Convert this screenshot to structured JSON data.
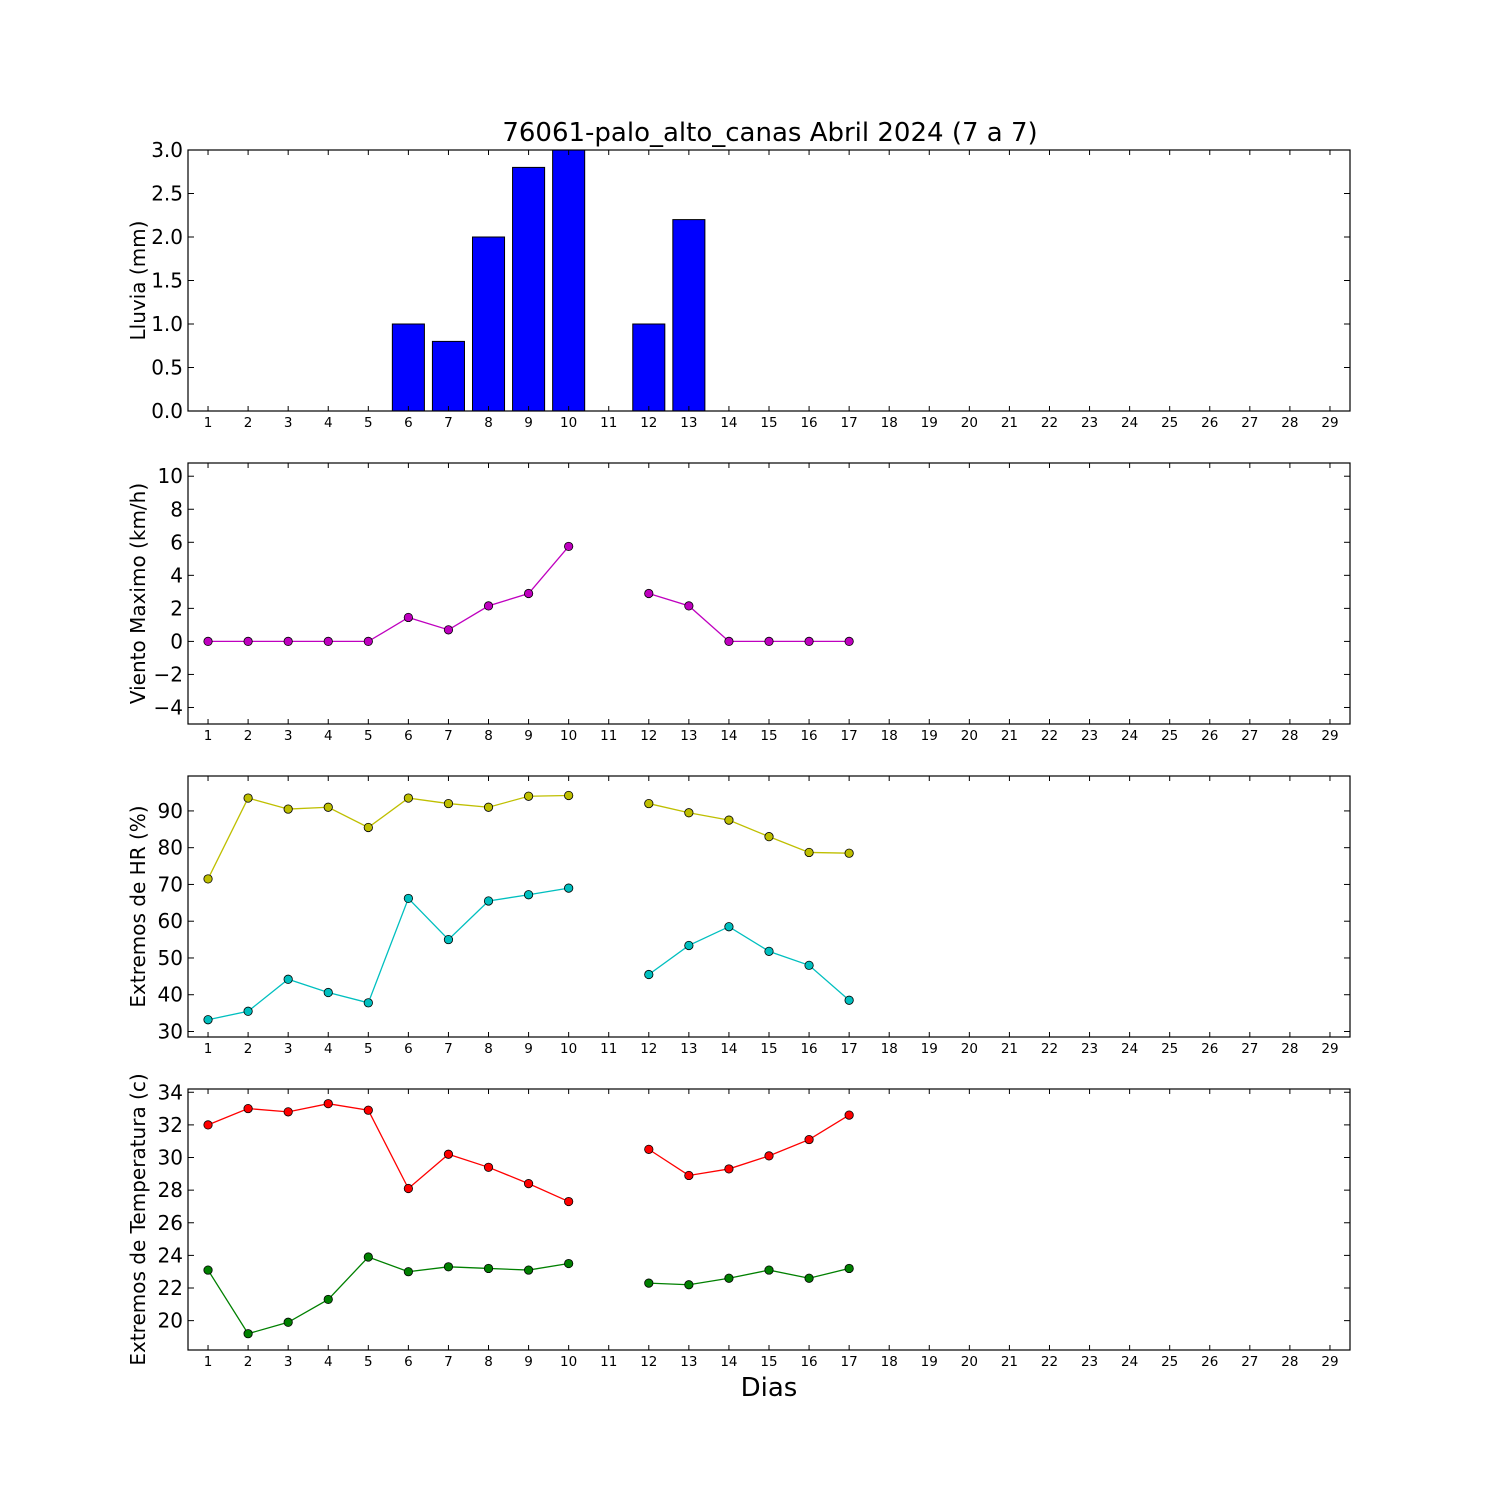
{
  "chart_data": [
    {
      "type": "bar",
      "title": "76061-palo_alto_canas Abril 2024  (7 a 7)",
      "ylabel": "Lluvia (mm)",
      "xlim": [
        0.5,
        29.5
      ],
      "ylim": [
        0,
        3.0
      ],
      "yticks": [
        "0.0",
        "0.5",
        "1.0",
        "1.5",
        "2.0",
        "2.5",
        "3.0"
      ],
      "x": [
        1,
        2,
        3,
        4,
        5,
        6,
        7,
        8,
        9,
        10,
        11,
        12,
        13,
        14,
        15,
        16,
        17,
        18,
        19,
        20,
        21,
        22,
        23,
        24,
        25,
        26,
        27,
        28,
        29
      ],
      "series": [
        {
          "color": "#0000ff",
          "values": [
            0,
            0,
            0,
            0,
            0,
            1.0,
            0.8,
            2.0,
            2.8,
            3.0,
            null,
            1.0,
            2.2,
            0,
            0,
            0,
            0,
            null,
            null,
            null,
            null,
            null,
            null,
            null,
            null,
            null,
            null,
            null,
            null
          ]
        }
      ],
      "grid": false
    },
    {
      "type": "line",
      "ylabel": "Viento Maximo (km/h)",
      "xlim": [
        0.5,
        29.5
      ],
      "ylim": [
        -5,
        10.8
      ],
      "yticks": [
        "−4",
        "−2",
        "0",
        "2",
        "4",
        "6",
        "8",
        "10"
      ],
      "x": [
        1,
        2,
        3,
        4,
        5,
        6,
        7,
        8,
        9,
        10,
        11,
        12,
        13,
        14,
        15,
        16,
        17,
        18,
        19,
        20,
        21,
        22,
        23,
        24,
        25,
        26,
        27,
        28,
        29
      ],
      "series": [
        {
          "color": "#bf00bf",
          "values": [
            0,
            0,
            0,
            0,
            0,
            1.45,
            0.7,
            2.15,
            2.9,
            5.75,
            null,
            2.9,
            2.15,
            0,
            0,
            0,
            0,
            null,
            null,
            null,
            null,
            null,
            null,
            null,
            null,
            null,
            null,
            null,
            null
          ]
        }
      ],
      "grid": false
    },
    {
      "type": "line",
      "ylabel": "Extremos de HR (%)",
      "xlim": [
        0.5,
        29.5
      ],
      "ylim": [
        28.5,
        99.5
      ],
      "yticks": [
        "30",
        "40",
        "50",
        "60",
        "70",
        "80",
        "90"
      ],
      "x": [
        1,
        2,
        3,
        4,
        5,
        6,
        7,
        8,
        9,
        10,
        11,
        12,
        13,
        14,
        15,
        16,
        17,
        18,
        19,
        20,
        21,
        22,
        23,
        24,
        25,
        26,
        27,
        28,
        29
      ],
      "series": [
        {
          "color": "#bfbf00",
          "values": [
            71.5,
            93.5,
            90.5,
            91,
            85.5,
            93.5,
            92,
            91,
            94,
            94.2,
            null,
            92,
            89.5,
            87.5,
            83,
            78.7,
            78.5,
            null,
            null,
            null,
            null,
            null,
            null,
            null,
            null,
            null,
            null,
            null,
            null
          ]
        },
        {
          "color": "#00bfbf",
          "values": [
            33.2,
            35.5,
            44.2,
            40.6,
            37.8,
            66.2,
            55,
            65.5,
            67.2,
            69,
            null,
            45.5,
            53.4,
            58.5,
            51.8,
            48,
            38.5,
            null,
            null,
            null,
            null,
            null,
            null,
            null,
            null,
            null,
            null,
            null,
            null
          ]
        }
      ],
      "grid": false
    },
    {
      "type": "line",
      "ylabel": "Extremos de Temperatura (c)",
      "xlabel": "Dias",
      "xlim": [
        0.5,
        29.5
      ],
      "ylim": [
        18.2,
        34.2
      ],
      "yticks": [
        "20",
        "22",
        "24",
        "26",
        "28",
        "30",
        "32",
        "34"
      ],
      "x": [
        1,
        2,
        3,
        4,
        5,
        6,
        7,
        8,
        9,
        10,
        11,
        12,
        13,
        14,
        15,
        16,
        17,
        18,
        19,
        20,
        21,
        22,
        23,
        24,
        25,
        26,
        27,
        28,
        29
      ],
      "series": [
        {
          "color": "#ff0000",
          "values": [
            32,
            33,
            32.8,
            33.3,
            32.9,
            28.1,
            30.2,
            29.4,
            28.4,
            27.3,
            null,
            30.5,
            28.9,
            29.3,
            30.1,
            31.1,
            32.6,
            null,
            null,
            null,
            null,
            null,
            null,
            null,
            null,
            null,
            null,
            null,
            null
          ]
        },
        {
          "color": "#008000",
          "values": [
            23.1,
            19.2,
            19.9,
            21.3,
            23.9,
            23,
            23.3,
            23.2,
            23.1,
            23.5,
            null,
            22.3,
            22.2,
            22.6,
            23.1,
            22.6,
            23.2,
            null,
            null,
            null,
            null,
            null,
            null,
            null,
            null,
            null,
            null,
            null,
            null
          ]
        }
      ],
      "grid": false
    }
  ]
}
